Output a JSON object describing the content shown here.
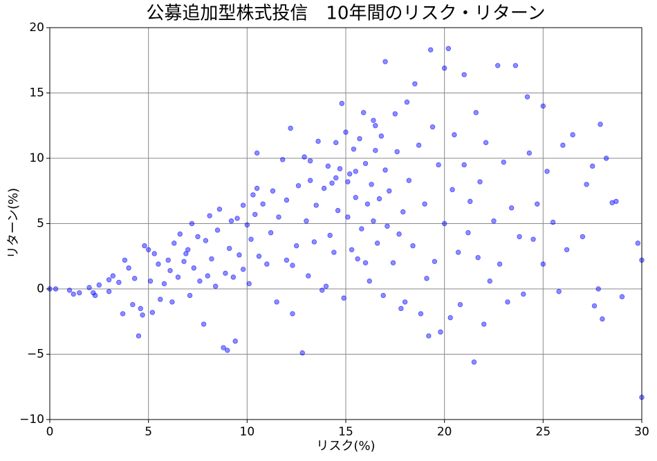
{
  "chart_data": {
    "type": "scatter",
    "title": "公募追加型株式投信　10年間のリスク・リターン",
    "xlabel": "リスク(%)",
    "ylabel": "リターン(%)",
    "color": "#0000ff",
    "grid": true,
    "xlim": [
      0,
      30
    ],
    "ylim": [
      -10,
      20
    ],
    "xticks": [
      0,
      5,
      10,
      15,
      20,
      25,
      30
    ],
    "yticks": [
      {
        "value": -10,
        "label": "−10"
      },
      {
        "value": -5,
        "label": "−5"
      },
      0,
      5,
      10,
      15,
      20
    ],
    "x": [
      0,
      0.3,
      1,
      1.2,
      1.5,
      2,
      2.2,
      2.3,
      2.5,
      3,
      3.2,
      3.5,
      3.7,
      3.8,
      4,
      4.2,
      4.3,
      4.5,
      4.6,
      4.7,
      4.8,
      5,
      5.1,
      5.2,
      5.3,
      5.5,
      5.6,
      5.8,
      6,
      6.1,
      6.2,
      6.3,
      6.5,
      6.6,
      6.8,
      7,
      7.1,
      7.2,
      7.3,
      7.5,
      7.6,
      7.8,
      7.9,
      8,
      8.1,
      8.2,
      8.4,
      8.5,
      8.6,
      8.8,
      8.9,
      9,
      9.1,
      9.2,
      9.3,
      9.4,
      9.5,
      9.6,
      9.8,
      10,
      10.1,
      10.2,
      10.3,
      10.4,
      10.5,
      10.5,
      10.6,
      10.8,
      11,
      11.2,
      11.3,
      11.5,
      11.6,
      11.8,
      12,
      12,
      12.2,
      12.3,
      12.5,
      12.6,
      12.8,
      12.9,
      13,
      13.1,
      13.2,
      13.4,
      13.5,
      13.6,
      13.8,
      13.9,
      14,
      14.1,
      14.2,
      14.3,
      14.4,
      14.5,
      14.5,
      14.6,
      14.7,
      14.8,
      14.9,
      15,
      15.1,
      15.2,
      15.3,
      15.4,
      15.5,
      15.5,
      15.6,
      15.7,
      15.8,
      15.9,
      16,
      16,
      16.1,
      16.2,
      16.3,
      16.4,
      16.5,
      16.5,
      16.6,
      16.7,
      16.8,
      16.9,
      17,
      17,
      17.1,
      17.2,
      17.4,
      17.5,
      17.6,
      17.8,
      17.9,
      18,
      18.1,
      18.2,
      18.4,
      18.5,
      18.7,
      18.8,
      19,
      19.1,
      19.2,
      19.3,
      19.4,
      19.5,
      19.7,
      19.8,
      20,
      20,
      20.2,
      20.3,
      20.4,
      20.5,
      20.7,
      20.8,
      21,
      21,
      21.2,
      21.3,
      21.5,
      21.6,
      21.7,
      21.8,
      22,
      22.1,
      22.3,
      22.5,
      22.7,
      22.8,
      23,
      23.2,
      23.4,
      23.6,
      23.8,
      24,
      24.2,
      24.3,
      24.5,
      24.7,
      25,
      25,
      25.2,
      25.5,
      25.8,
      26,
      26.2,
      26.5,
      27,
      27.2,
      27.5,
      27.6,
      27.8,
      27.9,
      28,
      28.2,
      28.5,
      28.7,
      29,
      29.8,
      30,
      30,
      9.8,
      6.9,
      3,
      12.3,
      15.1,
      16.4,
      13.2,
      17.7
    ],
    "values": [
      0,
      0,
      -0.1,
      -0.4,
      -0.3,
      0.1,
      -0.3,
      -0.5,
      0.3,
      -0.2,
      1,
      0.5,
      -1.9,
      2.2,
      1.6,
      -1.2,
      0.8,
      -3.6,
      -1.5,
      -2,
      3.3,
      3,
      0.6,
      -1.8,
      2.7,
      1.9,
      -0.8,
      0.4,
      2.2,
      1.4,
      -1,
      3.5,
      0.9,
      4.2,
      2.1,
      3,
      -0.5,
      5,
      1.6,
      4,
      0.6,
      -2.7,
      3.7,
      1,
      5.6,
      2.3,
      0.2,
      4.5,
      6.1,
      -4.5,
      1.2,
      -4.7,
      3.1,
      5.2,
      0.9,
      -4,
      5.4,
      2.6,
      6.4,
      4.9,
      0.4,
      3.8,
      7.2,
      5.7,
      7.7,
      10.4,
      2.5,
      6.5,
      1.9,
      4.3,
      7.5,
      -1,
      5.5,
      9.9,
      2.2,
      6.8,
      12.3,
      -1.9,
      3.3,
      7.9,
      -4.9,
      10.1,
      5.2,
      1,
      8.3,
      3.6,
      6.4,
      11.3,
      -0.1,
      7.7,
      0.2,
      9.4,
      4.1,
      8.1,
      2.8,
      8.5,
      11.2,
      6,
      9.2,
      14.2,
      -0.7,
      12,
      5.5,
      8.8,
      3,
      10.7,
      9,
      7,
      2.3,
      11.5,
      4.6,
      13.5,
      2,
      9.6,
      6.5,
      0.6,
      8,
      5.2,
      12.5,
      10.6,
      3.5,
      6.9,
      11.7,
      -0.5,
      17.4,
      9.1,
      4.8,
      7.5,
      2,
      13.4,
      10.5,
      -1.5,
      5.9,
      -1,
      14.3,
      8.3,
      3.3,
      15.7,
      11,
      -1.9,
      6.5,
      0.8,
      -3.6,
      18.3,
      12.4,
      2.1,
      9.5,
      -3.3,
      5,
      16.9,
      18.4,
      -2.2,
      7.6,
      11.8,
      2.8,
      -1.2,
      16.4,
      9.5,
      4.3,
      6.7,
      -5.6,
      13.5,
      2.4,
      8.2,
      -2.7,
      11.2,
      0.6,
      5.2,
      17.1,
      1.9,
      9.7,
      -1,
      6.2,
      17.1,
      4,
      -0.4,
      14.7,
      10.4,
      3.8,
      6.5,
      14,
      1.9,
      9,
      5.1,
      -0.2,
      11,
      3,
      11.8,
      4,
      8,
      9.4,
      -1.3,
      0,
      12.6,
      -2.3,
      10,
      6.6,
      6.7,
      -0.6,
      3.5,
      2.2,
      -8.3,
      1.5,
      2.7,
      0.7,
      1.8,
      8.2,
      12.9,
      9.8,
      4.2
    ]
  }
}
